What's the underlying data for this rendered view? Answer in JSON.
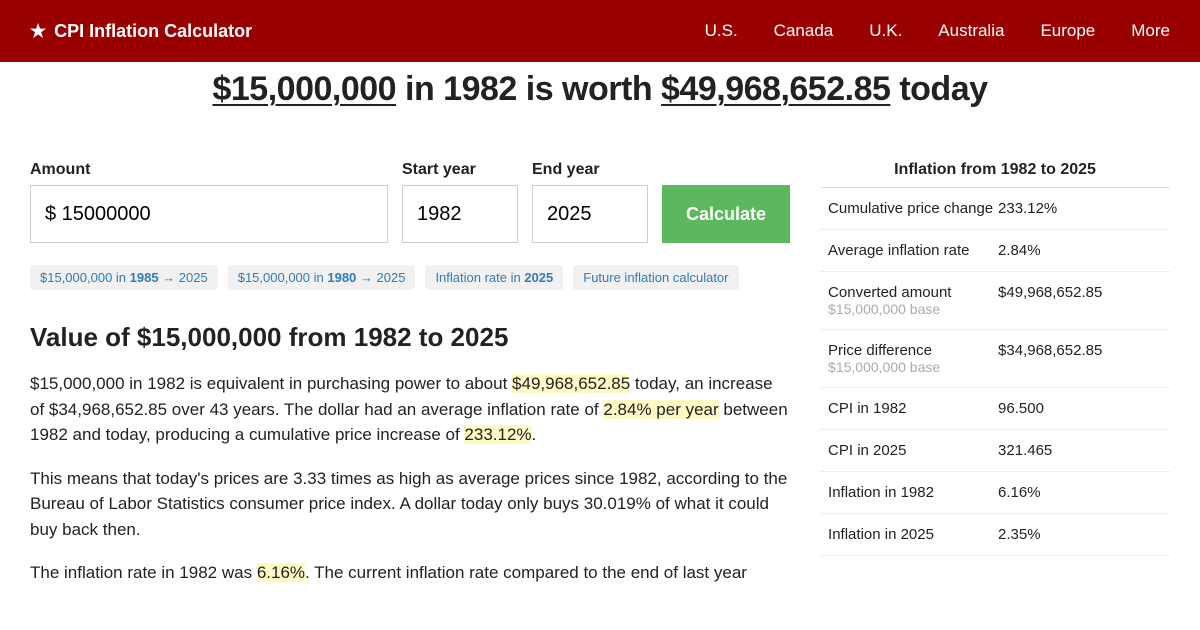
{
  "brand": "CPI Inflation Calculator",
  "nav": {
    "us": "U.S.",
    "canada": "Canada",
    "uk": "U.K.",
    "australia": "Australia",
    "europe": "Europe",
    "more": "More"
  },
  "headline": {
    "amount": "$15,000,000",
    "mid1": " in 1982 is worth ",
    "result": "$49,968,652.85",
    "mid2": " today"
  },
  "form": {
    "amount_label": "Amount",
    "amount_value": "$ 15000000",
    "start_label": "Start year",
    "start_value": "1982",
    "end_label": "End year",
    "end_value": "2025",
    "button": "Calculate"
  },
  "chips": {
    "c1a": "$15,000,000 in ",
    "c1b": "1985",
    "c1c": " → 2025",
    "c2a": "$15,000,000 in ",
    "c2b": "1980",
    "c2c": " → 2025",
    "c3a": "Inflation rate in ",
    "c3b": "2025",
    "c4": "Future inflation calculator"
  },
  "section_title": "Value of $15,000,000 from 1982 to 2025",
  "para1": {
    "a": "$15,000,000 in 1982 is equivalent in purchasing power to about ",
    "h1": "$49,968,652.85",
    "b": " today, an increase of $34,968,652.85 over 43 years. The dollar had an average inflation rate of ",
    "h2": "2.84% per year",
    "c": " between 1982 and today, producing a cumulative price increase of ",
    "h3": "233.12%",
    "d": "."
  },
  "para2": "This means that today's prices are 3.33 times as high as average prices since 1982, according to the Bureau of Labor Statistics consumer price index. A dollar today only buys 30.019% of what it could buy back then.",
  "para3": {
    "a": "The inflation rate in 1982 was ",
    "h1": "6.16%",
    "b": ". The current inflation rate compared to the end of last year"
  },
  "sidebar": {
    "title": "Inflation from 1982 to 2025",
    "rows": [
      {
        "label": "Cumulative price change",
        "sub": "",
        "value": "233.12%"
      },
      {
        "label": "Average inflation rate",
        "sub": "",
        "value": "2.84%"
      },
      {
        "label": "Converted amount",
        "sub": "$15,000,000 base",
        "value": "$49,968,652.85"
      },
      {
        "label": "Price difference",
        "sub": "$15,000,000 base",
        "value": "$34,968,652.85"
      },
      {
        "label": "CPI in 1982",
        "sub": "",
        "value": "96.500"
      },
      {
        "label": "CPI in 2025",
        "sub": "",
        "value": "321.465"
      },
      {
        "label": "Inflation in 1982",
        "sub": "",
        "value": "6.16%"
      },
      {
        "label": "Inflation in 2025",
        "sub": "",
        "value": "2.35%"
      }
    ]
  }
}
